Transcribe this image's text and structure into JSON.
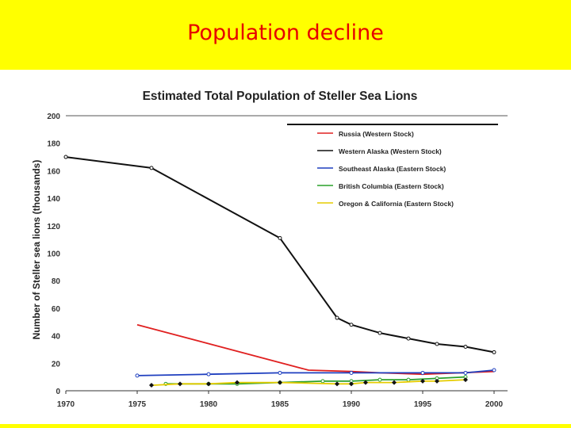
{
  "slide": {
    "title": "Population decline",
    "colors": {
      "banner": "#ffff00",
      "title": "#e60000"
    }
  },
  "chart_data": {
    "type": "line",
    "title": "Estimated Total Population of Steller Sea Lions",
    "xlabel": "",
    "ylabel": "Number of Steller sea lions (thousands)",
    "xlim": [
      1970,
      2000
    ],
    "ylim": [
      0,
      200
    ],
    "xticks": [
      1970,
      1975,
      1980,
      1985,
      1990,
      1995,
      2000
    ],
    "yticks": [
      0,
      20,
      40,
      60,
      80,
      100,
      120,
      140,
      160,
      180,
      200
    ],
    "grid": false,
    "legend_position": "top-right",
    "series": [
      {
        "name": "Russia (Western Stock)",
        "color": "#e02020",
        "marker": "none",
        "points": [
          [
            1975,
            48
          ],
          [
            1987,
            15
          ],
          [
            1990,
            14
          ],
          [
            1992,
            13
          ],
          [
            1995,
            12
          ],
          [
            2000,
            14
          ]
        ]
      },
      {
        "name": "Western Alaska (Western Stock)",
        "color": "#111111",
        "marker": "circle",
        "points": [
          [
            1970,
            170
          ],
          [
            1976,
            162
          ],
          [
            1985,
            111
          ],
          [
            1989,
            53
          ],
          [
            1990,
            48
          ],
          [
            1992,
            42
          ],
          [
            1994,
            38
          ],
          [
            1996,
            34
          ],
          [
            1998,
            32
          ],
          [
            2000,
            28
          ]
        ]
      },
      {
        "name": "Southeast Alaska (Eastern Stock)",
        "color": "#1f3fbf",
        "marker": "circle",
        "points": [
          [
            1975,
            11
          ],
          [
            1980,
            12
          ],
          [
            1985,
            13
          ],
          [
            1990,
            13
          ],
          [
            1995,
            13
          ],
          [
            1998,
            13
          ],
          [
            2000,
            15
          ]
        ]
      },
      {
        "name": "British Columbia (Eastern Stock)",
        "color": "#2aa02a",
        "marker": "circle",
        "points": [
          [
            1977,
            5
          ],
          [
            1980,
            5
          ],
          [
            1982,
            5
          ],
          [
            1985,
            6
          ],
          [
            1988,
            7
          ],
          [
            1990,
            7
          ],
          [
            1992,
            8
          ],
          [
            1994,
            8
          ],
          [
            1996,
            9
          ],
          [
            1998,
            10
          ]
        ]
      },
      {
        "name": "Oregon & California (Eastern Stock)",
        "color": "#e6cc00",
        "marker": "diamond",
        "points": [
          [
            1976,
            4
          ],
          [
            1978,
            5
          ],
          [
            1980,
            5
          ],
          [
            1982,
            6
          ],
          [
            1985,
            6
          ],
          [
            1989,
            5
          ],
          [
            1990,
            5
          ],
          [
            1991,
            6
          ],
          [
            1993,
            6
          ],
          [
            1995,
            7
          ],
          [
            1996,
            7
          ],
          [
            1998,
            8
          ]
        ]
      }
    ]
  }
}
